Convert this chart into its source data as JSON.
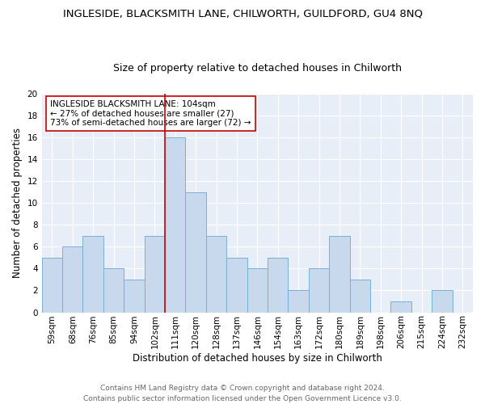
{
  "title": "INGLESIDE, BLACKSMITH LANE, CHILWORTH, GUILDFORD, GU4 8NQ",
  "subtitle": "Size of property relative to detached houses in Chilworth",
  "xlabel": "Distribution of detached houses by size in Chilworth",
  "ylabel": "Number of detached properties",
  "categories": [
    "59sqm",
    "68sqm",
    "76sqm",
    "85sqm",
    "94sqm",
    "102sqm",
    "111sqm",
    "120sqm",
    "128sqm",
    "137sqm",
    "146sqm",
    "154sqm",
    "163sqm",
    "172sqm",
    "180sqm",
    "189sqm",
    "198sqm",
    "206sqm",
    "215sqm",
    "224sqm",
    "232sqm"
  ],
  "values": [
    5,
    6,
    7,
    4,
    3,
    7,
    16,
    11,
    7,
    5,
    4,
    5,
    2,
    4,
    7,
    3,
    0,
    1,
    0,
    2,
    0
  ],
  "bar_color": "#c9d9ed",
  "bar_edge_color": "#7aafd4",
  "vline_color": "#cc0000",
  "annotation_text": "INGLESIDE BLACKSMITH LANE: 104sqm\n← 27% of detached houses are smaller (27)\n73% of semi-detached houses are larger (72) →",
  "annotation_box_color": "#ffffff",
  "annotation_box_edge": "#cc0000",
  "ylim": [
    0,
    20
  ],
  "yticks": [
    0,
    2,
    4,
    6,
    8,
    10,
    12,
    14,
    16,
    18,
    20
  ],
  "bg_color": "#e8eef8",
  "grid_color": "#ffffff",
  "footer": "Contains HM Land Registry data © Crown copyright and database right 2024.\nContains public sector information licensed under the Open Government Licence v3.0.",
  "title_fontsize": 9.5,
  "subtitle_fontsize": 9,
  "xlabel_fontsize": 8.5,
  "ylabel_fontsize": 8.5,
  "tick_fontsize": 7.5,
  "annotation_fontsize": 7.5,
  "footer_fontsize": 6.5
}
